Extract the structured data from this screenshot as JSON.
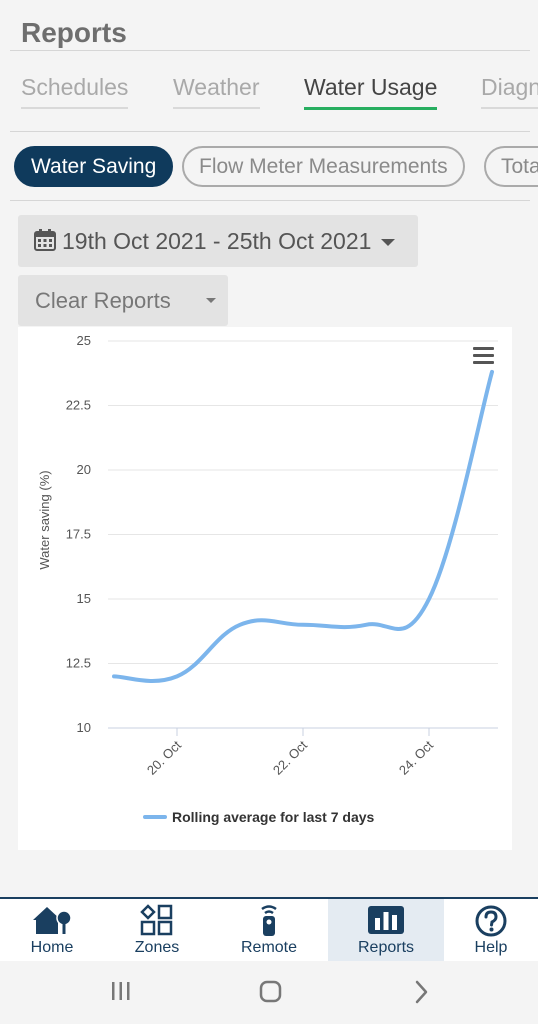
{
  "header": {
    "title": "Reports"
  },
  "tabs": [
    {
      "label": "Schedules",
      "active": false
    },
    {
      "label": "Weather",
      "active": false
    },
    {
      "label": "Water Usage",
      "active": true
    },
    {
      "label": "Diagnostics",
      "active": false
    }
  ],
  "pills": [
    {
      "label": "Water Saving",
      "active": true
    },
    {
      "label": "Flow Meter Measurements",
      "active": false
    },
    {
      "label": "Total",
      "active": false
    }
  ],
  "filters": {
    "date_range": "19th Oct 2021 - 25th Oct 2021",
    "clear_reports": "Clear Reports"
  },
  "chart_data": {
    "type": "line",
    "ylabel": "Water saving (%)",
    "ylim": [
      10,
      25
    ],
    "y_ticks": [
      "10",
      "12.5",
      "15",
      "17.5",
      "20",
      "22.5",
      "25"
    ],
    "x_ticks": [
      "20. Oct",
      "22. Oct",
      "24. Oct"
    ],
    "legend_position": "bottom",
    "grid": true,
    "series": [
      {
        "name": "Rolling average for last 7 days",
        "color": "#7cb5ec",
        "points": [
          {
            "x": "19. Oct",
            "y": 12
          },
          {
            "x": "20. Oct",
            "y": 12
          },
          {
            "x": "21. Oct",
            "y": 14
          },
          {
            "x": "22. Oct",
            "y": 14
          },
          {
            "x": "23. Oct",
            "y": 14
          },
          {
            "x": "24. Oct",
            "y": 15
          },
          {
            "x": "25. Oct",
            "y": 23.8
          }
        ]
      }
    ]
  },
  "bottom_nav": [
    {
      "label": "Home",
      "icon": "home-icon",
      "active": false
    },
    {
      "label": "Zones",
      "icon": "zones-icon",
      "active": false
    },
    {
      "label": "Remote",
      "icon": "remote-icon",
      "active": false
    },
    {
      "label": "Reports",
      "icon": "reports-icon",
      "active": true
    },
    {
      "label": "Help",
      "icon": "help-icon",
      "active": false
    }
  ],
  "colors": {
    "accent": "#0f3a5c",
    "tab_underline": "#27ae60",
    "line": "#7cb5ec"
  }
}
